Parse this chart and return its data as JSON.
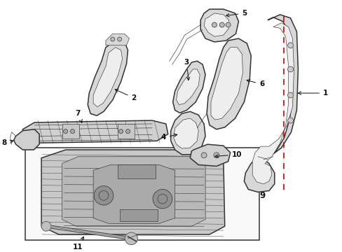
{
  "background_color": "#ffffff",
  "line_color": "#333333",
  "red_color": "#cc0000",
  "label_color": "#111111",
  "fig_width": 4.89,
  "fig_height": 3.6,
  "dpi": 100,
  "lw_thick": 1.1,
  "lw_med": 0.7,
  "lw_thin": 0.45,
  "label_fs": 7.5,
  "xlim": [
    0,
    489
  ],
  "ylim": [
    0,
    360
  ]
}
